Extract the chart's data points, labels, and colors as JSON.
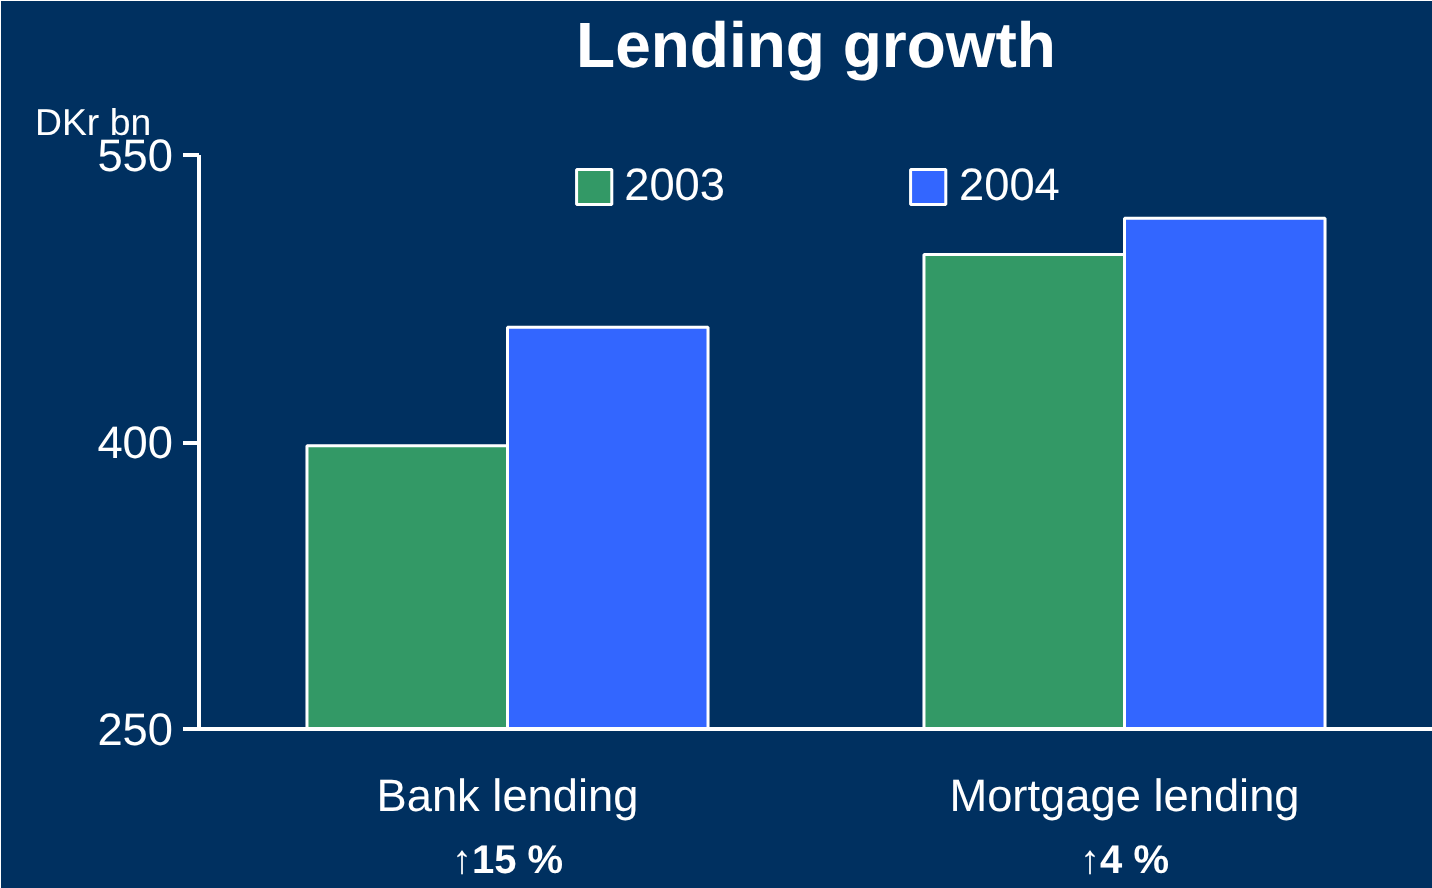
{
  "chart_data": {
    "type": "bar",
    "title": "Lending growth",
    "ylabel": "DKr bn",
    "categories": [
      "Bank lending",
      "Mortgage lending"
    ],
    "series": [
      {
        "name": "2003",
        "color": "#339966",
        "values": [
          398,
          498
        ]
      },
      {
        "name": "2004",
        "color": "#3366ff",
        "values": [
          460,
          517
        ]
      }
    ],
    "ylim": [
      250,
      550
    ],
    "yticks": [
      250,
      400,
      550
    ],
    "grid": false,
    "legend": "top",
    "annotations": [
      "↑15 %",
      "↑4 %"
    ]
  }
}
